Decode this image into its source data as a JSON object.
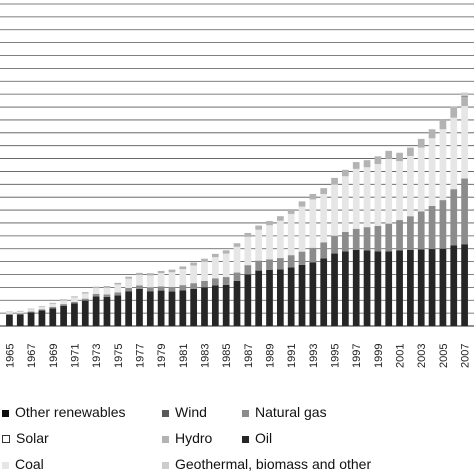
{
  "chart_data": {
    "type": "bar",
    "stacked": true,
    "title": "",
    "xlabel": "",
    "ylabel": "",
    "grid": true,
    "legend_placement": "bottom",
    "tick_labels": [
      "1965",
      "1967",
      "1969",
      "1971",
      "1973",
      "1975",
      "1977",
      "1979",
      "1981",
      "1983",
      "1985",
      "1987",
      "1989",
      "1991",
      "1993",
      "1995",
      "1997",
      "1999",
      "2001",
      "2003",
      "2005",
      "2007"
    ],
    "categories": [
      "1965",
      "1966",
      "1967",
      "1968",
      "1969",
      "1970",
      "1971",
      "1972",
      "1973",
      "1974",
      "1975",
      "1976",
      "1977",
      "1978",
      "1979",
      "1980",
      "1981",
      "1982",
      "1983",
      "1984",
      "1985",
      "1986",
      "1987",
      "1988",
      "1989",
      "1990",
      "1991",
      "1992",
      "1993",
      "1994",
      "1995",
      "1996",
      "1997",
      "1998",
      "1999",
      "2000",
      "2001",
      "2002",
      "2003",
      "2004",
      "2005",
      "2006",
      "2007"
    ],
    "ylim": [
      0,
      100
    ],
    "colors": {
      "other_renewables": "#0d0d0d",
      "wind": "#595959",
      "natural_gas": "#8c8c8c",
      "solar": "#ffffff",
      "hydro": "#b3b3b3",
      "oil": "#262626",
      "coal": "#e6e6e6",
      "geothermal": "#cccccc"
    },
    "series": [
      {
        "name": "Oil",
        "values": [
          3.5,
          3.6,
          4.2,
          4.8,
          5.5,
          6.3,
          7.0,
          7.9,
          9.2,
          9.0,
          9.5,
          10.8,
          11.5,
          10.8,
          11.0,
          10.7,
          11.1,
          11.5,
          12.0,
          12.6,
          12.8,
          14.0,
          16.0,
          17.2,
          17.4,
          17.6,
          18.2,
          19.0,
          19.8,
          21.0,
          22.5,
          23.2,
          23.6,
          23.5,
          23.2,
          23.2,
          23.5,
          23.6,
          23.8,
          23.9,
          24.0,
          25.0,
          25.4
        ]
      },
      {
        "name": "Natural gas",
        "values": [
          0.3,
          0.3,
          0.3,
          0.4,
          0.4,
          0.5,
          0.5,
          0.6,
          0.8,
          0.8,
          0.9,
          1.0,
          1.1,
          1.2,
          1.3,
          1.4,
          1.6,
          1.8,
          2.0,
          2.2,
          2.4,
          2.6,
          2.9,
          3.1,
          3.3,
          3.5,
          3.8,
          4.1,
          4.5,
          5.0,
          5.5,
          6.0,
          6.6,
          7.2,
          7.9,
          8.6,
          9.4,
          10.5,
          11.8,
          13.4,
          15.1,
          17.5,
          20.4
        ]
      },
      {
        "name": "Coal",
        "values": [
          0.5,
          0.6,
          0.7,
          0.8,
          1.0,
          1.2,
          1.4,
          1.6,
          1.8,
          2.1,
          2.5,
          2.9,
          3.3,
          3.7,
          4.1,
          4.6,
          5.0,
          5.5,
          6.0,
          6.6,
          7.3,
          8.0,
          8.8,
          9.6,
          10.6,
          11.6,
          12.8,
          14.0,
          15.0,
          15.0,
          16.0,
          17.3,
          18.6,
          18.6,
          19.2,
          20.1,
          18.3,
          18.7,
          19.8,
          21.0,
          22.0,
          22.2,
          22.5
        ]
      },
      {
        "name": "Hydro",
        "values": [
          0.2,
          0.2,
          0.2,
          0.2,
          0.3,
          0.3,
          0.3,
          0.4,
          0.4,
          0.5,
          0.5,
          0.6,
          0.6,
          0.7,
          0.7,
          0.8,
          0.8,
          0.9,
          0.9,
          1.0,
          1.0,
          1.1,
          1.2,
          1.3,
          1.3,
          1.4,
          1.5,
          1.6,
          1.7,
          1.8,
          2.0,
          2.0,
          2.1,
          2.2,
          2.4,
          2.5,
          2.6,
          2.6,
          2.7,
          2.8,
          2.9,
          3.0,
          3.0
        ]
      },
      {
        "name": "Wind",
        "values": [
          0,
          0,
          0,
          0,
          0,
          0,
          0,
          0,
          0,
          0,
          0,
          0,
          0,
          0,
          0,
          0,
          0,
          0,
          0,
          0,
          0,
          0,
          0,
          0,
          0,
          0,
          0,
          0,
          0,
          0,
          0,
          0,
          0,
          0,
          0,
          0,
          0,
          0,
          0,
          0,
          0,
          0.1,
          0.2
        ]
      },
      {
        "name": "Solar",
        "values": [
          0,
          0,
          0,
          0,
          0,
          0,
          0,
          0,
          0,
          0,
          0,
          0,
          0,
          0,
          0,
          0,
          0,
          0,
          0,
          0,
          0,
          0,
          0,
          0,
          0,
          0,
          0,
          0,
          0,
          0,
          0,
          0,
          0,
          0,
          0,
          0,
          0,
          0,
          0,
          0,
          0,
          0,
          0
        ]
      },
      {
        "name": "Geothermal, biomass and other",
        "values": [
          0,
          0,
          0,
          0,
          0,
          0,
          0,
          0,
          0,
          0,
          0,
          0,
          0,
          0,
          0,
          0,
          0,
          0,
          0,
          0,
          0,
          0,
          0,
          0,
          0,
          0,
          0,
          0,
          0,
          0,
          0,
          0,
          0,
          0,
          0,
          0,
          0,
          0,
          0,
          0,
          0,
          0.5,
          1.0
        ]
      },
      {
        "name": "Other renewables",
        "values": [
          0,
          0,
          0,
          0,
          0,
          0,
          0,
          0,
          0,
          0,
          0,
          0,
          0,
          0,
          0,
          0,
          0,
          0,
          0,
          0,
          0,
          0,
          0,
          0,
          0,
          0,
          0,
          0,
          0,
          0,
          0,
          0,
          0,
          0,
          0,
          0,
          0,
          0,
          0,
          0,
          0,
          0,
          0
        ]
      }
    ]
  },
  "legend": {
    "other_renewables": "Other renewables",
    "wind": "Wind",
    "natural_gas": "Natural gas",
    "solar": "Solar",
    "hydro": "Hydro",
    "oil": "Oil",
    "coal": "Coal",
    "geothermal": "Geothermal, biomass and other"
  }
}
